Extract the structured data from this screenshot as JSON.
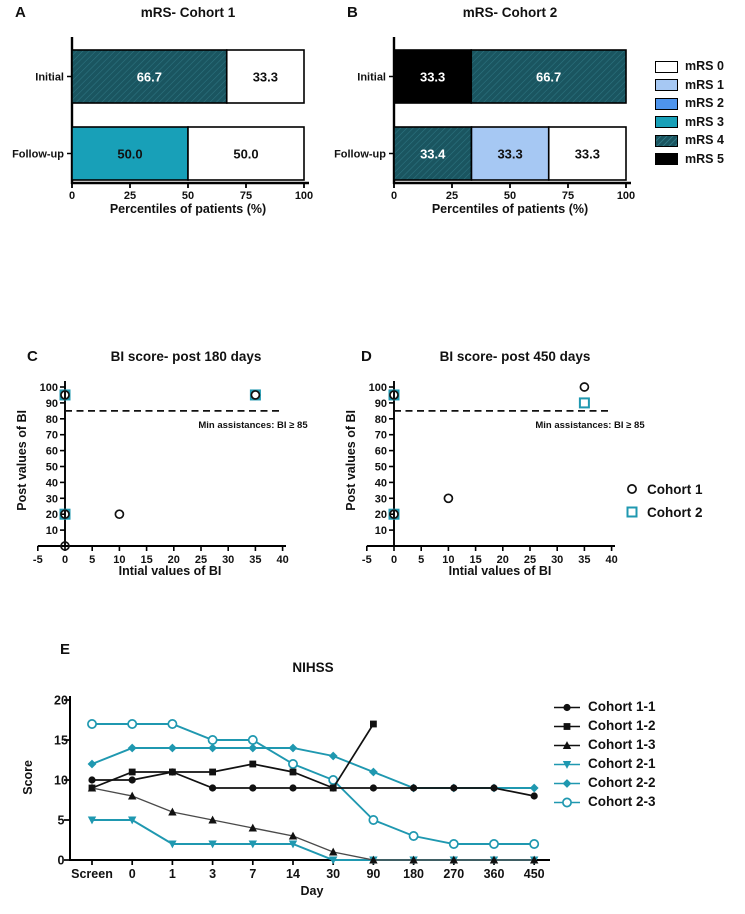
{
  "colors": {
    "mrs0": "#ffffff",
    "mrs1": "#a6c8f3",
    "mrs2": "#4e94ec",
    "mrs3": "#18a0b8",
    "mrs4": "#1a5560",
    "mrs4_hatch": "#2e7582",
    "mrs5": "#000000",
    "teal": "#1f98b0",
    "black": "#111111",
    "gray": "#4a4a4a"
  },
  "chart_data": [
    {
      "id": "mrs-cohort1",
      "type": "bar",
      "panel_label": "A",
      "title": "mRS- Cohort 1",
      "xlabel": "Percentiles of patients (%)",
      "orientation": "horizontal",
      "stacked": true,
      "xlim": [
        0,
        100
      ],
      "xticks": [
        0,
        25,
        50,
        75,
        100
      ],
      "categories": [
        "Initial",
        "Follow-up"
      ],
      "bars": [
        {
          "category": "Initial",
          "segments": [
            {
              "value": 66.7,
              "label": "66.7",
              "mrs": "mRS 4",
              "color_key": "mrs4",
              "label_color": "#ffffff"
            },
            {
              "value": 33.3,
              "label": "33.3",
              "mrs": "mRS 0",
              "color_key": "mrs0",
              "label_color": "#111111"
            }
          ]
        },
        {
          "category": "Follow-up",
          "segments": [
            {
              "value": 50.0,
              "label": "50.0",
              "mrs": "mRS 3",
              "color_key": "mrs3",
              "label_color": "#111111"
            },
            {
              "value": 50.0,
              "label": "50.0",
              "mrs": "mRS 0",
              "color_key": "mrs0",
              "label_color": "#111111"
            }
          ]
        }
      ]
    },
    {
      "id": "mrs-cohort2",
      "type": "bar",
      "panel_label": "B",
      "title": "mRS- Cohort 2",
      "xlabel": "Percentiles of patients (%)",
      "orientation": "horizontal",
      "stacked": true,
      "xlim": [
        0,
        100
      ],
      "xticks": [
        0,
        25,
        50,
        75,
        100
      ],
      "categories": [
        "Initial",
        "Follow-up"
      ],
      "bars": [
        {
          "category": "Initial",
          "segments": [
            {
              "value": 33.3,
              "label": "33.3",
              "mrs": "mRS 5",
              "color_key": "mrs5",
              "label_color": "#ffffff"
            },
            {
              "value": 66.7,
              "label": "66.7",
              "mrs": "mRS 4",
              "color_key": "mrs4",
              "label_color": "#ffffff"
            }
          ]
        },
        {
          "category": "Follow-up",
          "segments": [
            {
              "value": 33.4,
              "label": "33.4",
              "mrs": "mRS 4",
              "color_key": "mrs4",
              "label_color": "#ffffff"
            },
            {
              "value": 33.3,
              "label": "33.3",
              "mrs": "mRS 1",
              "color_key": "mrs1",
              "label_color": "#111111"
            },
            {
              "value": 33.3,
              "label": "33.3",
              "mrs": "mRS 0",
              "color_key": "mrs0",
              "label_color": "#111111"
            }
          ]
        }
      ]
    },
    {
      "id": "bi-180",
      "type": "scatter",
      "panel_label": "C",
      "title": "BI score- post 180 days",
      "xlabel": "Intial values of BI",
      "ylabel": "Post values of BI",
      "xlim": [
        -5,
        40
      ],
      "ylim": [
        0,
        100
      ],
      "xticks": [
        -5,
        0,
        5,
        10,
        15,
        20,
        25,
        30,
        35,
        40
      ],
      "yticks": [
        10,
        20,
        30,
        40,
        50,
        60,
        70,
        80,
        90,
        100
      ],
      "threshold_line": {
        "y": 85,
        "style": "dashed",
        "label": "Min assistances: BI ≥ 85"
      },
      "series": [
        {
          "name": "Cohort 1",
          "marker": "circle-open",
          "color_key": "black",
          "points": [
            [
              0,
              0
            ],
            [
              0,
              20
            ],
            [
              10,
              20
            ],
            [
              0,
              95
            ],
            [
              35,
              95
            ]
          ]
        },
        {
          "name": "Cohort 2",
          "marker": "square-open",
          "color_key": "teal",
          "points": [
            [
              0,
              20
            ],
            [
              0,
              95
            ],
            [
              35,
              95
            ]
          ]
        }
      ]
    },
    {
      "id": "bi-450",
      "type": "scatter",
      "panel_label": "D",
      "title": "BI score- post 450 days",
      "xlabel": "Intial values of BI",
      "ylabel": "Post values of BI",
      "xlim": [
        -5,
        40
      ],
      "ylim": [
        0,
        100
      ],
      "xticks": [
        -5,
        0,
        5,
        10,
        15,
        20,
        25,
        30,
        35,
        40
      ],
      "yticks": [
        10,
        20,
        30,
        40,
        50,
        60,
        70,
        80,
        90,
        100
      ],
      "threshold_line": {
        "y": 85,
        "style": "dashed",
        "label": "Min assistances: BI ≥ 85"
      },
      "series": [
        {
          "name": "Cohort 1",
          "marker": "circle-open",
          "color_key": "black",
          "points": [
            [
              0,
              20
            ],
            [
              0,
              95
            ],
            [
              10,
              30
            ],
            [
              35,
              100
            ]
          ]
        },
        {
          "name": "Cohort 2",
          "marker": "square-open",
          "color_key": "teal",
          "points": [
            [
              0,
              20
            ],
            [
              0,
              95
            ],
            [
              35,
              90
            ]
          ]
        }
      ]
    },
    {
      "id": "nihss",
      "type": "line",
      "panel_label": "E",
      "title": "NIHSS",
      "xlabel": "Day",
      "ylabel": "Score",
      "ylim": [
        0,
        20
      ],
      "yticks": [
        0,
        5,
        10,
        15,
        20
      ],
      "categories": [
        "Screen",
        "0",
        "1",
        "3",
        "7",
        "14",
        "30",
        "90",
        "180",
        "270",
        "360",
        "450"
      ],
      "series": [
        {
          "name": "Cohort 1-1",
          "marker": "circle",
          "color_key": "black",
          "values": [
            10,
            10,
            11,
            9,
            9,
            9,
            9,
            9,
            9,
            9,
            9,
            8
          ]
        },
        {
          "name": "Cohort 1-2",
          "marker": "square",
          "color_key": "black",
          "values": [
            9,
            11,
            11,
            11,
            12,
            11,
            9,
            17,
            null,
            null,
            null,
            null
          ]
        },
        {
          "name": "Cohort 1-3",
          "marker": "triangle-up",
          "color_key": "gray",
          "values": [
            9,
            8,
            6,
            5,
            4,
            3,
            1,
            0,
            0,
            0,
            0,
            0
          ]
        },
        {
          "name": "Cohort 2-1",
          "marker": "triangle-down",
          "color_key": "teal",
          "values": [
            5,
            5,
            2,
            2,
            2,
            2,
            0,
            0,
            0,
            0,
            0,
            0
          ]
        },
        {
          "name": "Cohort 2-2",
          "marker": "diamond",
          "color_key": "teal",
          "values": [
            12,
            14,
            14,
            14,
            14,
            14,
            13,
            11,
            9,
            9,
            9,
            9
          ]
        },
        {
          "name": "Cohort 2-3",
          "marker": "circle-open",
          "color_key": "teal",
          "values": [
            17,
            17,
            17,
            15,
            15,
            12,
            10,
            5,
            3,
            2,
            2,
            2
          ]
        }
      ]
    }
  ],
  "legends": {
    "mrs": {
      "items": [
        {
          "label": "mRS 0",
          "color_key": "mrs0"
        },
        {
          "label": "mRS 1",
          "color_key": "mrs1"
        },
        {
          "label": "mRS 2",
          "color_key": "mrs2"
        },
        {
          "label": "mRS 3",
          "color_key": "mrs3"
        },
        {
          "label": "mRS 4",
          "color_key": "mrs4"
        },
        {
          "label": "mRS 5",
          "color_key": "mrs5"
        }
      ]
    },
    "cohort": {
      "items": [
        {
          "label": "Cohort 1",
          "marker": "circle-open",
          "color_key": "black"
        },
        {
          "label": "Cohort 2",
          "marker": "square-open",
          "color_key": "teal"
        }
      ]
    },
    "nihss": {
      "items": [
        {
          "label": "Cohort 1-1",
          "marker": "circle",
          "color_key": "black"
        },
        {
          "label": "Cohort 1-2",
          "marker": "square",
          "color_key": "black"
        },
        {
          "label": "Cohort 1-3",
          "marker": "triangle-up",
          "color_key": "black"
        },
        {
          "label": "Cohort 2-1",
          "marker": "triangle-down",
          "color_key": "teal"
        },
        {
          "label": "Cohort 2-2",
          "marker": "diamond",
          "color_key": "teal"
        },
        {
          "label": "Cohort 2-3",
          "marker": "circle-open",
          "color_key": "teal"
        }
      ]
    }
  }
}
